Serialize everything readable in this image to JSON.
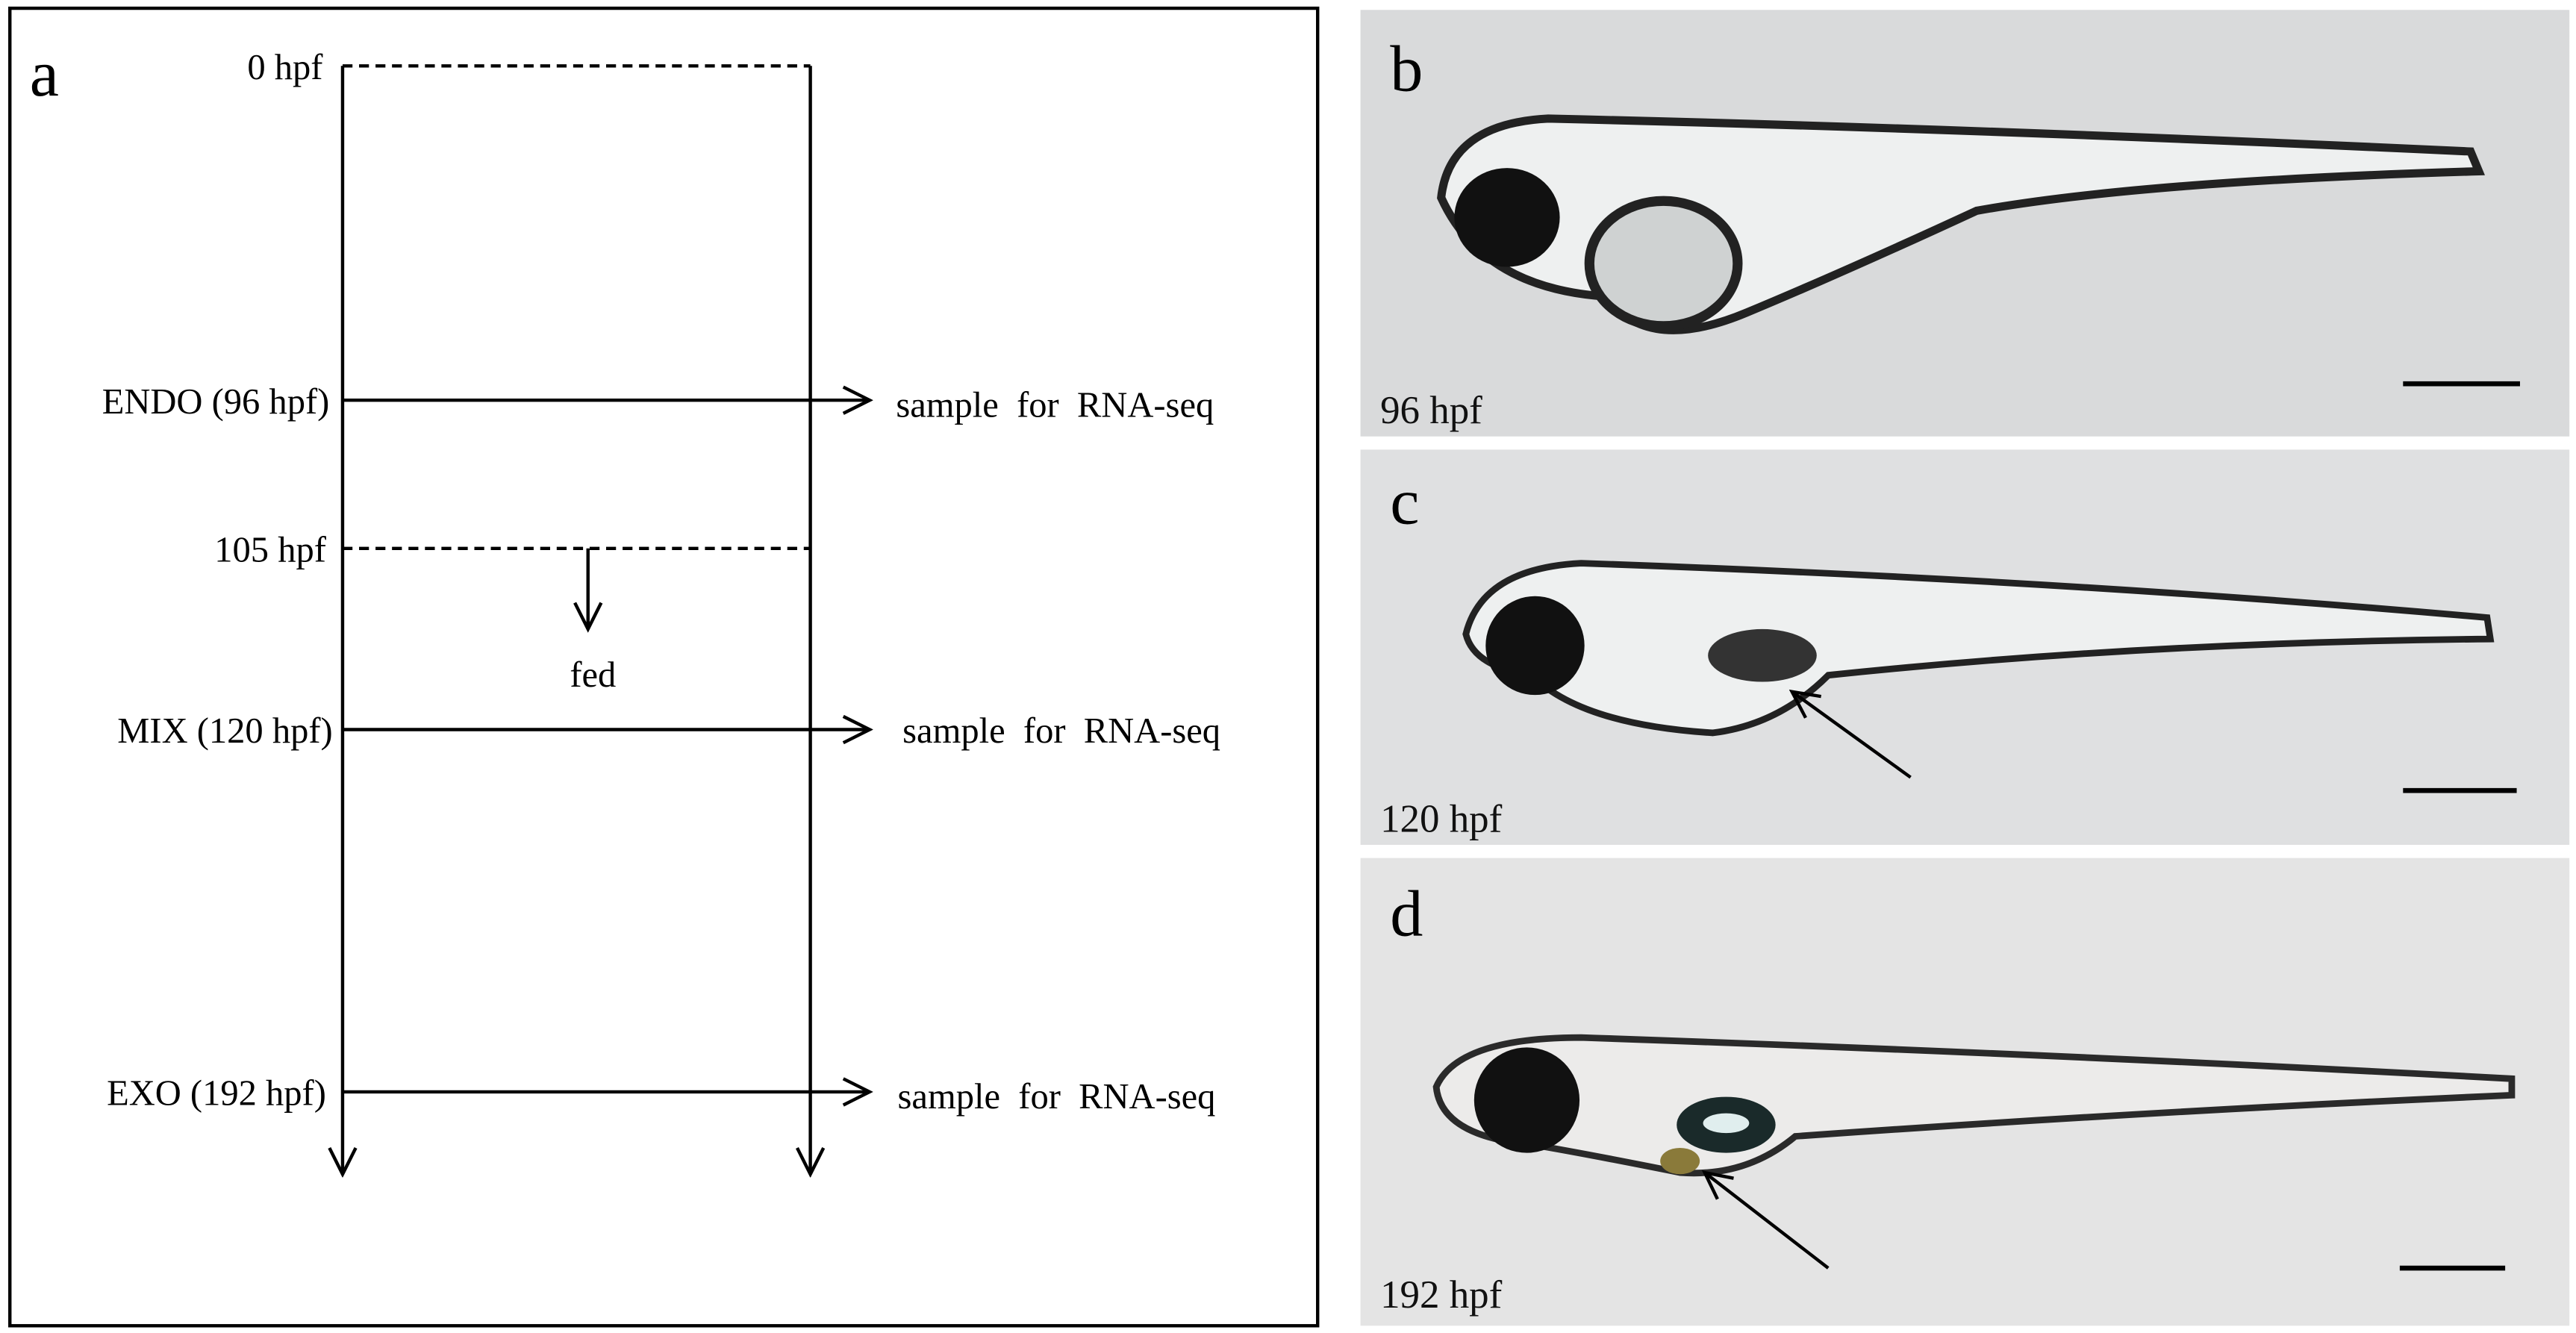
{
  "panel_a": {
    "label": "a",
    "timepoints": [
      "0 hpf",
      "ENDO (96 hpf)",
      "105 hpf",
      "MIX (120 hpf)",
      "EXO (192 hpf)"
    ],
    "fed": "fed",
    "samples": [
      "sample  for  RNA-seq",
      "sample  for  RNA-seq",
      "sample  for  RNA-seq"
    ]
  },
  "panels": [
    {
      "label": "b",
      "caption": "96 hpf"
    },
    {
      "label": "c",
      "caption": "120 hpf"
    },
    {
      "label": "d",
      "caption": "192 hpf"
    }
  ]
}
